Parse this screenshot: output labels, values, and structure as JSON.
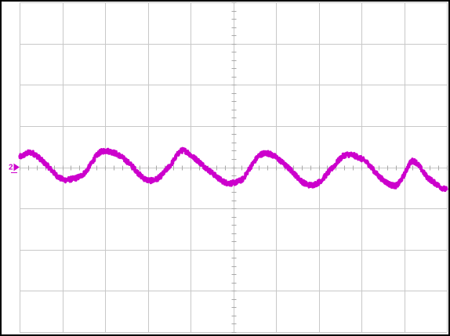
{
  "chart_data": {
    "type": "line",
    "title": "",
    "xlabel": "",
    "ylabel": "",
    "grid": true,
    "x_divisions": 10,
    "y_divisions": 8,
    "xlim": [
      0,
      10
    ],
    "ylim": [
      -4,
      4
    ],
    "channel_marker": {
      "label": "2",
      "level": 0,
      "color": "#cc00cc"
    },
    "series": [
      {
        "color": "#cc00cc",
        "noise_amplitude": 0.06,
        "x": [
          0.0,
          0.28,
          0.64,
          0.93,
          1.15,
          1.51,
          1.87,
          2.21,
          2.56,
          2.93,
          3.22,
          3.53,
          3.79,
          4.05,
          4.46,
          4.85,
          5.21,
          5.4,
          5.63,
          5.9,
          6.33,
          6.69,
          6.98,
          7.29,
          7.63,
          8.09,
          8.44,
          8.78,
          8.93,
          9.2,
          9.55,
          10.0
        ],
        "y": [
          0.25,
          0.35,
          0.05,
          -0.25,
          -0.3,
          -0.15,
          0.35,
          0.35,
          0.1,
          -0.28,
          -0.28,
          0.05,
          0.4,
          0.25,
          -0.1,
          -0.38,
          -0.3,
          0.0,
          0.3,
          0.3,
          -0.05,
          -0.4,
          -0.38,
          -0.05,
          0.3,
          0.15,
          -0.25,
          -0.45,
          -0.3,
          0.15,
          -0.25,
          -0.55
        ]
      }
    ]
  }
}
